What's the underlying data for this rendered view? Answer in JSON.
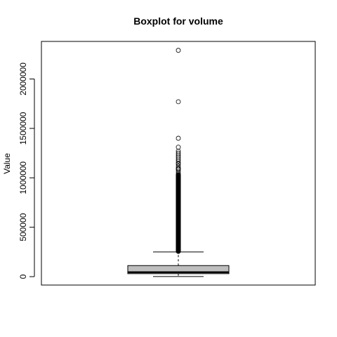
{
  "chart_data": {
    "type": "boxplot",
    "title": "Boxplot for volume",
    "xlabel": "",
    "ylabel": "Value",
    "ylim": [
      -85000,
      2380000
    ],
    "yticks": [
      0,
      500000,
      1000000,
      1500000,
      2000000
    ],
    "ytick_labels": [
      "0",
      "500000",
      "1000000",
      "1500000",
      "2000000"
    ],
    "grid": false,
    "box": {
      "whisker_low": 1000,
      "q1": 30000,
      "median": 45000,
      "q3": 112000,
      "whisker_high": 250000,
      "fill": "#bebebe"
    },
    "outliers_dense_range": [
      255000,
      1030000
    ],
    "outliers": [
      1040000,
      1060000,
      1080000,
      1090000,
      1100000,
      1120000,
      1140000,
      1150000,
      1170000,
      1190000,
      1210000,
      1230000,
      1250000,
      1270000,
      1310000,
      1400000,
      1770000,
      2290000
    ]
  }
}
